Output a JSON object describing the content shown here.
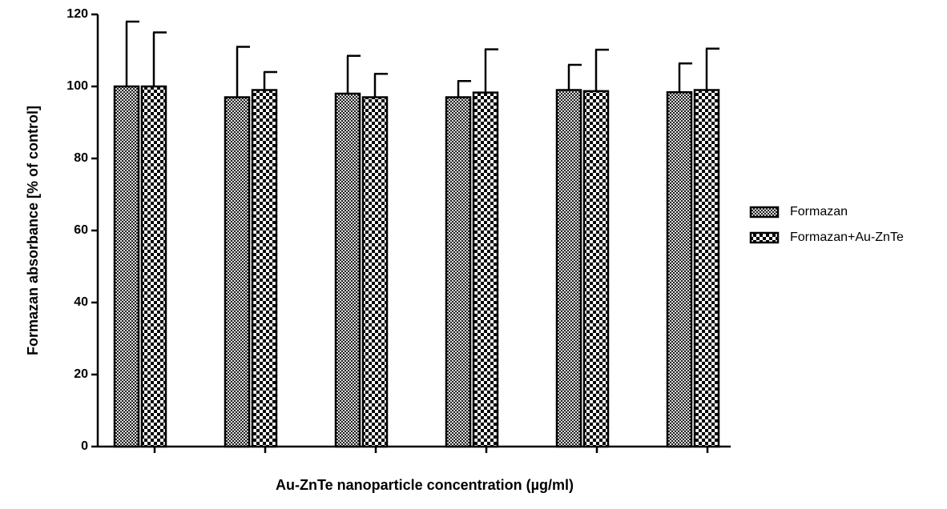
{
  "chart_data": {
    "type": "bar",
    "x_label": "Au-ZnTe nanoparticle concentration (µg/ml)",
    "y_label": "Formazan absorbance [% of control]",
    "categories": [
      null,
      null,
      null,
      null,
      null,
      null
    ],
    "series": [
      {
        "name": "Formazan",
        "values": [
          100,
          97,
          98,
          97,
          99,
          98.4
        ],
        "errors": [
          18,
          14,
          10.5,
          4.5,
          7,
          8
        ]
      },
      {
        "name": "Formazan+Au-ZnTe",
        "values": [
          100,
          99,
          97,
          98.3,
          98.7,
          99
        ],
        "errors": [
          15,
          5,
          6.5,
          12,
          11.5,
          11.5
        ]
      }
    ],
    "ylim": [
      0,
      120
    ],
    "yticks": [
      0,
      20,
      40,
      60,
      80,
      100,
      120
    ],
    "legend": "right"
  }
}
